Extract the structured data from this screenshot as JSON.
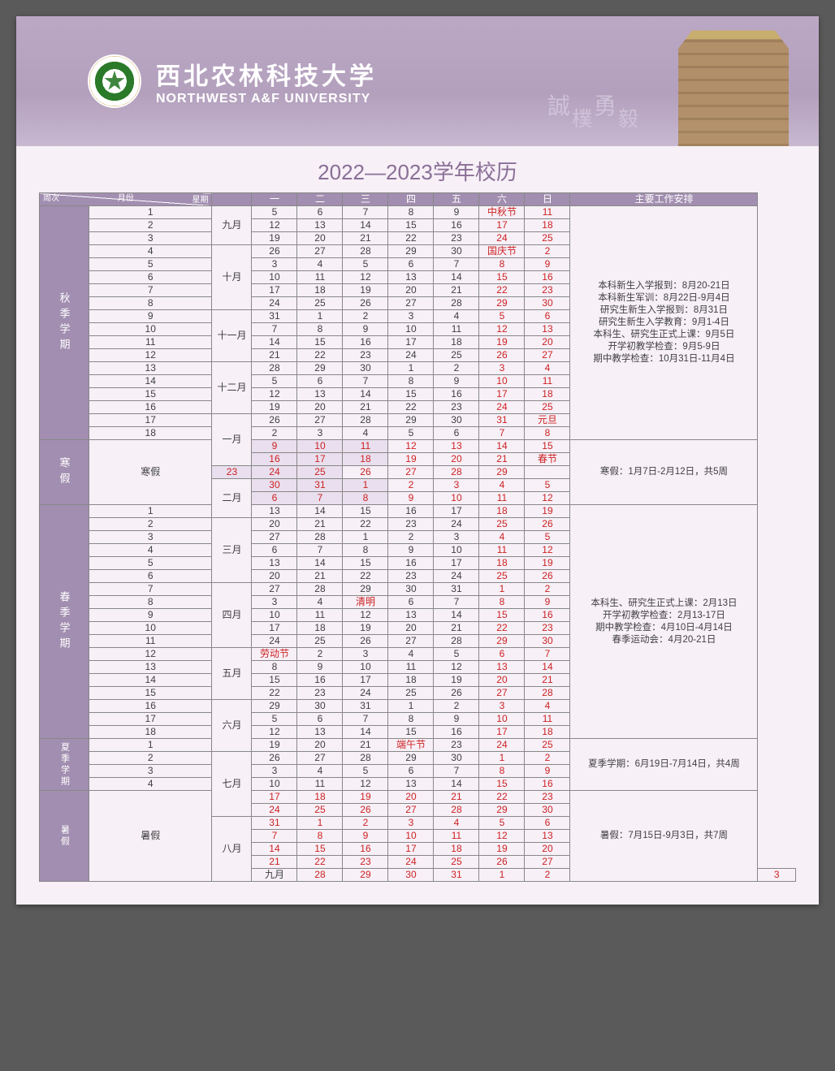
{
  "university": {
    "name_cn": "西北农林科技大学",
    "name_en": "NORTHWEST A&F UNIVERSITY",
    "motto": "誠樸勇毅"
  },
  "page_title": "2022—2023学年校历",
  "header": {
    "diag_top": "星期",
    "diag_left": "周次",
    "diag_mid": "月份",
    "days": [
      "一",
      "二",
      "三",
      "四",
      "五",
      "六",
      "日"
    ],
    "schedule": "主要工作安排"
  },
  "terms": {
    "fall": "秋季学期",
    "winter": "寒假",
    "spring": "春季学期",
    "summer_term": "夏季学期",
    "summer_vac": "暑假"
  },
  "months": {
    "sep": "九月",
    "oct": "十月",
    "nov": "十一月",
    "dec": "十二月",
    "jan": "一月",
    "feb": "二月",
    "mar": "三月",
    "apr": "四月",
    "may": "五月",
    "jun": "六月",
    "jul": "七月",
    "aug": "八月",
    "sep2": "九月"
  },
  "week_labels": {
    "winter": "寒假",
    "summer": "暑假"
  },
  "holidays": {
    "midautumn": "中秋节",
    "national": "国庆节",
    "newyear": "元旦",
    "cny": "春节",
    "qingming": "清明",
    "labor": "劳动节",
    "duanwu": "端午节"
  },
  "notes": {
    "fall": [
      "本科新生入学报到：8月20-21日",
      "本科新生军训：8月22日-9月4日",
      "研究生新生入学报到：8月31日",
      "研究生新生入学教育：9月1-4日",
      "本科生、研究生正式上课：9月5日",
      "开学初教学检查：9月5-9日",
      "期中教学检查：10月31日-11月4日"
    ],
    "winter": "寒假：1月7日-2月12日，共5周",
    "spring": [
      "本科生、研究生正式上课：2月13日",
      "开学初教学检查：2月13-17日",
      "期中教学检查：4月10日-4月14日",
      "春季运动会：4月20-21日"
    ],
    "summer_term": "夏季学期：6月19日-7月14日，共4周",
    "summer_vac": "暑假：7月15日-9月3日，共7周"
  },
  "colors": {
    "header_bg": "#a28eb0",
    "page_bg": "#f7f0f7",
    "red": "#c22",
    "text": "#404040",
    "border": "#888"
  }
}
